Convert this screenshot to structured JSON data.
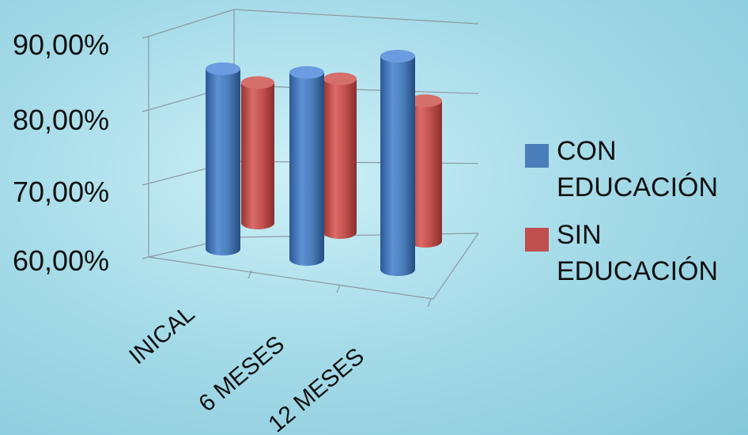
{
  "chart_data": {
    "type": "bar",
    "categories": [
      "INICAL",
      "6 MESES",
      "12 MESES"
    ],
    "series": [
      {
        "name": "CON EDUCACIÓN",
        "color": "#4a7ebb",
        "values": [
          0.8,
          0.81,
          0.85
        ]
      },
      {
        "name": "SIN EDUCACIÓN",
        "color": "#c0504d",
        "values": [
          0.74,
          0.76,
          0.74
        ]
      }
    ],
    "yticks": [
      "90,00%",
      "80,00%",
      "70,00%",
      "60,00%"
    ],
    "ylim": [
      0.6,
      0.9
    ],
    "title": "",
    "xlabel": "",
    "ylabel": "",
    "grid": true,
    "legend_position": "right"
  }
}
